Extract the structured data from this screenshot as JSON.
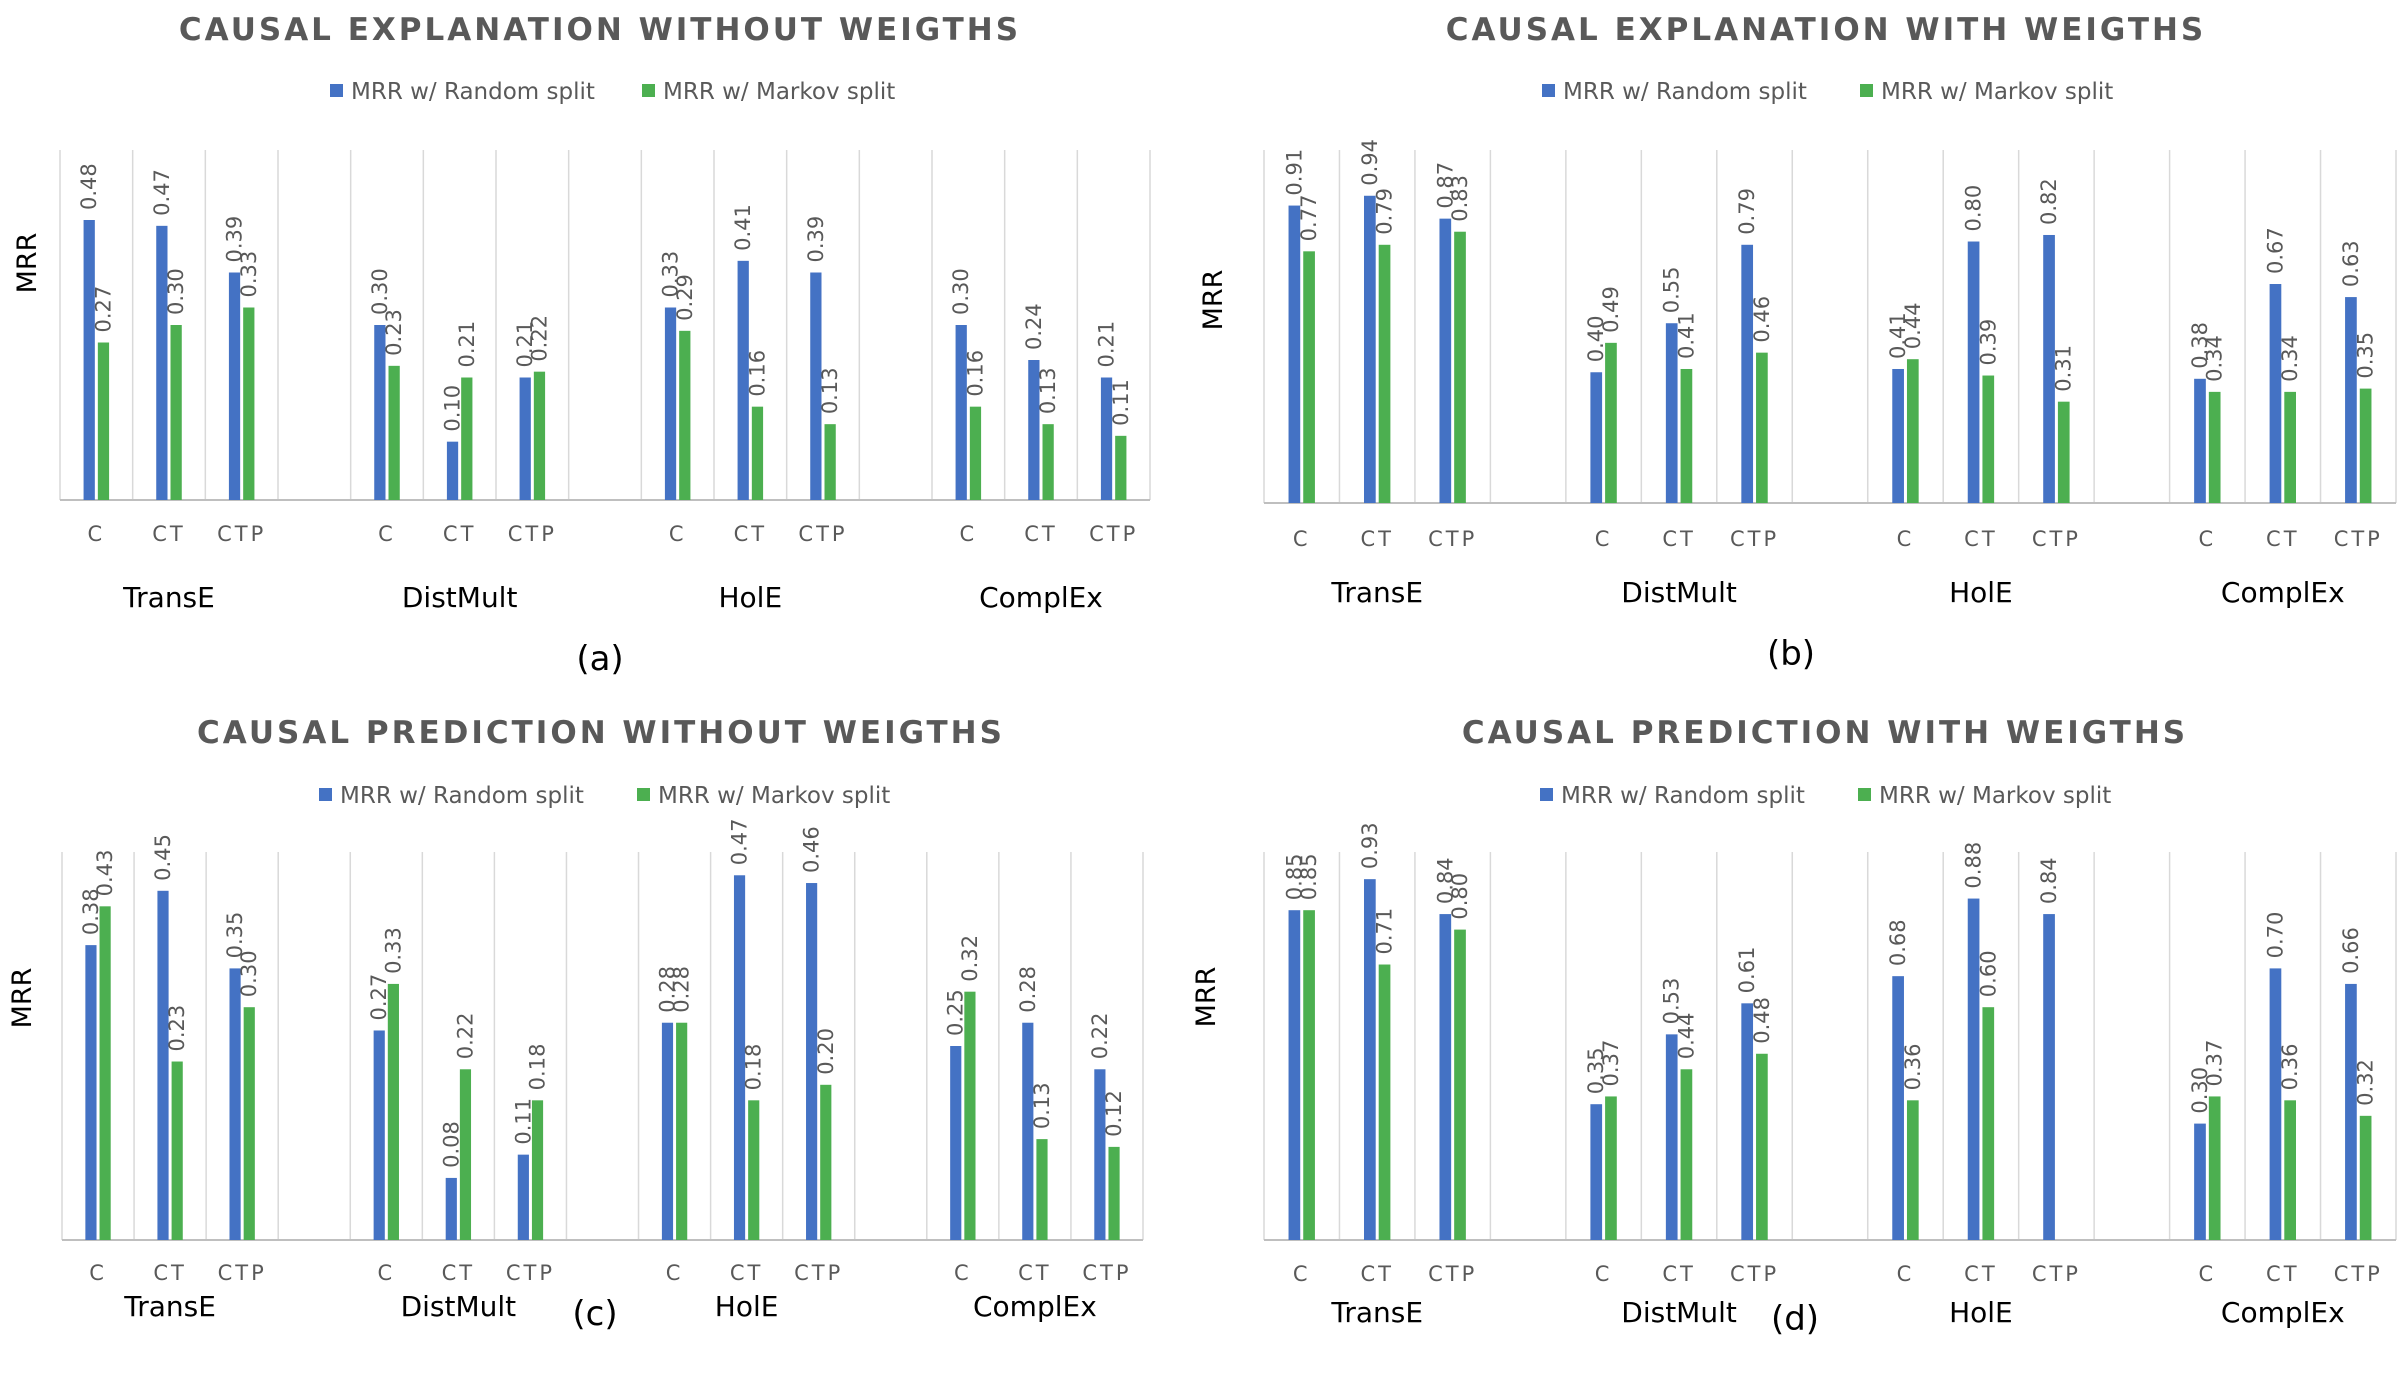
{
  "colors": {
    "random": "#4472c4",
    "markov": "#4caf50",
    "grid": "#d9d9d9",
    "axis": "#bfbfbf"
  },
  "chart_data": [
    {
      "panel": "(a)",
      "type": "bar",
      "title": "CAUSAL EXPLANATION WITHOUT WEIGTHS",
      "ylabel": "MRR",
      "ylim": [
        0,
        0.6
      ],
      "groups": [
        "TransE",
        "DistMult",
        "HolE",
        "ComplEx"
      ],
      "categories": [
        "C",
        "CT",
        "CTP"
      ],
      "series": [
        {
          "name": "MRR w/ Random split",
          "values": [
            [
              0.48,
              0.47,
              0.39
            ],
            [
              0.3,
              0.1,
              0.21
            ],
            [
              0.33,
              0.41,
              0.39
            ],
            [
              0.3,
              0.24,
              0.21
            ]
          ],
          "labels": [
            [
              "0.48",
              "0.47",
              "0.39"
            ],
            [
              "0.30",
              "0.10",
              "0.21"
            ],
            [
              "0.33",
              "0.41",
              "0.39"
            ],
            [
              "0.30",
              "0.24",
              "0.21"
            ]
          ]
        },
        {
          "name": "MRR w/ Markov split",
          "values": [
            [
              0.27,
              0.3,
              0.33
            ],
            [
              0.23,
              0.21,
              0.22
            ],
            [
              0.29,
              0.16,
              0.13
            ],
            [
              0.16,
              0.13,
              0.11
            ]
          ],
          "labels": [
            [
              "0.27",
              "0.30",
              "0.33"
            ],
            [
              "0.23",
              "0.21",
              "0.22"
            ],
            [
              "0.29",
              "0.16",
              "0.13"
            ],
            [
              "0.16",
              "0.13",
              "0.11"
            ]
          ]
        }
      ]
    },
    {
      "panel": "(b)",
      "type": "bar",
      "title": "CAUSAL EXPLANATION WITH WEIGTHS",
      "ylabel": "MRR",
      "ylim": [
        0,
        1.08
      ],
      "groups": [
        "TransE",
        "DistMult",
        "HolE",
        "ComplEx"
      ],
      "categories": [
        "C",
        "CT",
        "CTP"
      ],
      "series": [
        {
          "name": "MRR w/ Random split",
          "values": [
            [
              0.91,
              0.94,
              0.87
            ],
            [
              0.4,
              0.55,
              0.79
            ],
            [
              0.41,
              0.8,
              0.82
            ],
            [
              0.38,
              0.67,
              0.63
            ]
          ],
          "labels": [
            [
              "0.91",
              "0.94",
              "0.87"
            ],
            [
              "0.40",
              "0.55",
              "0.79"
            ],
            [
              "0.41",
              "0.80",
              "0.82"
            ],
            [
              "0.38",
              "0.67",
              "0.63"
            ]
          ]
        },
        {
          "name": "MRR w/ Markov split",
          "values": [
            [
              0.77,
              0.79,
              0.83
            ],
            [
              0.49,
              0.41,
              0.46
            ],
            [
              0.44,
              0.39,
              0.31
            ],
            [
              0.34,
              0.34,
              0.35
            ]
          ],
          "labels": [
            [
              "0.77",
              "0.79",
              "0.83"
            ],
            [
              "0.49",
              "0.41",
              "0.46"
            ],
            [
              "0.44",
              "0.39",
              "0.31"
            ],
            [
              "0.34",
              "0.34",
              "0.35"
            ]
          ]
        }
      ]
    },
    {
      "panel": "(c)",
      "type": "bar",
      "title": "CAUSAL PREDICTION WITHOUT WEIGTHS",
      "ylabel": "MRR",
      "ylim": [
        0,
        0.5
      ],
      "groups": [
        "TransE",
        "DistMult",
        "HolE",
        "ComplEx"
      ],
      "categories": [
        "C",
        "CT",
        "CTP"
      ],
      "series": [
        {
          "name": "MRR w/ Random split",
          "values": [
            [
              0.38,
              0.45,
              0.35
            ],
            [
              0.27,
              0.08,
              0.11
            ],
            [
              0.28,
              0.47,
              0.46
            ],
            [
              0.25,
              0.28,
              0.22
            ]
          ],
          "labels": [
            [
              "0.38",
              "0.45",
              "0.35"
            ],
            [
              "0.27",
              "0.08",
              "0.11"
            ],
            [
              "0.28",
              "0.47",
              "0.46"
            ],
            [
              "0.25",
              "0.28",
              "0.22"
            ]
          ]
        },
        {
          "name": "MRR w/ Markov split",
          "values": [
            [
              0.43,
              0.23,
              0.3
            ],
            [
              0.33,
              0.22,
              0.18
            ],
            [
              0.28,
              0.18,
              0.2
            ],
            [
              0.32,
              0.13,
              0.12
            ]
          ],
          "labels": [
            [
              "0.43",
              "0.23",
              "0.30"
            ],
            [
              "0.33",
              "0.22",
              "0.18"
            ],
            [
              "0.28",
              "0.18",
              "0.20"
            ],
            [
              "0.32",
              "0.13",
              "0.12"
            ]
          ]
        }
      ]
    },
    {
      "panel": "(d)",
      "type": "bar",
      "title": "CAUSAL PREDICTION WITH WEIGTHS",
      "ylabel": "MRR",
      "ylim": [
        0,
        1.0
      ],
      "groups": [
        "TransE",
        "DistMult",
        "HolE",
        "ComplEx"
      ],
      "categories": [
        "C",
        "CT",
        "CTP"
      ],
      "series": [
        {
          "name": "MRR w/ Random split",
          "values": [
            [
              0.85,
              0.93,
              0.84
            ],
            [
              0.35,
              0.53,
              0.61
            ],
            [
              0.68,
              0.88,
              0.84
            ],
            [
              0.3,
              0.7,
              0.66
            ]
          ],
          "labels": [
            [
              "0.85",
              "0.93",
              "0.84"
            ],
            [
              "0.35",
              "0.53",
              "0.61"
            ],
            [
              "0.68",
              "0.88",
              "0.84"
            ],
            [
              "0.30",
              "0.70",
              "0.66"
            ]
          ]
        },
        {
          "name": "MRR w/ Markov split",
          "values": [
            [
              0.85,
              0.71,
              0.8
            ],
            [
              0.37,
              0.44,
              0.48
            ],
            [
              0.36,
              0.6,
              null
            ],
            [
              0.37,
              0.36,
              0.32
            ]
          ],
          "labels": [
            [
              "0.85",
              "0.71",
              "0.80"
            ],
            [
              "0.37",
              "0.44",
              "0.48"
            ],
            [
              "0.36",
              "0.60",
              ""
            ],
            [
              "0.37",
              "0.36",
              "0.32"
            ]
          ]
        }
      ]
    }
  ]
}
